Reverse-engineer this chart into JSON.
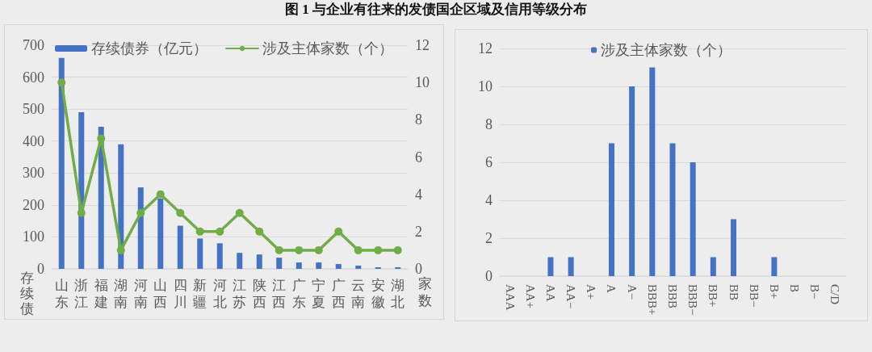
{
  "chart_data": [
    {
      "type": "bar",
      "title": "图 1 与企业有往来的发债国企区域及信用等级分布",
      "categories": [
        "山东",
        "浙江",
        "福建",
        "湖南",
        "河南",
        "山西",
        "四川",
        "新疆",
        "河北",
        "江苏",
        "陕西",
        "江西",
        "广东",
        "宁夏",
        "广西",
        "云南",
        "安徽",
        "湖北"
      ],
      "series": [
        {
          "name": "存续债券（亿元）",
          "color": "#4472c4",
          "values": [
            660,
            490,
            445,
            390,
            255,
            220,
            135,
            95,
            80,
            50,
            45,
            35,
            20,
            20,
            15,
            10,
            5,
            5
          ]
        },
        {
          "name": "涉及主体家数（个）",
          "type": "line",
          "axis": "y2",
          "color": "#70ad47",
          "values": [
            10,
            3,
            7,
            1,
            3,
            4,
            3,
            2,
            2,
            3,
            2,
            1,
            1,
            1,
            2,
            1,
            1,
            1
          ]
        }
      ],
      "ylabel": "存续债",
      "y2label": "家数",
      "ylim": [
        0,
        700
      ],
      "yticks": [
        0,
        100,
        200,
        300,
        400,
        500,
        600,
        700
      ],
      "y2lim": [
        0,
        12
      ],
      "y2ticks": [
        0,
        2,
        4,
        6,
        8,
        10,
        12
      ],
      "grid": "y",
      "legend": "top",
      "marker": "circle"
    },
    {
      "type": "bar",
      "categories": [
        "AAA",
        "AA+",
        "AA",
        "AA−",
        "A+",
        "A",
        "A−",
        "BBB+",
        "BBB",
        "BBB−",
        "BB+",
        "BB",
        "BB−",
        "B+",
        "B",
        "B−",
        "C/D"
      ],
      "series": [
        {
          "name": "涉及主体家数（个）",
          "color": "#4472c4",
          "values": [
            0,
            0,
            1,
            1,
            0,
            7,
            10,
            11,
            7,
            6,
            1,
            3,
            0,
            1,
            0,
            0,
            0
          ]
        }
      ],
      "ylim": [
        0,
        12
      ],
      "yticks": [
        0,
        2,
        4,
        6,
        8,
        10,
        12
      ],
      "grid": "y",
      "legend": "top"
    }
  ]
}
